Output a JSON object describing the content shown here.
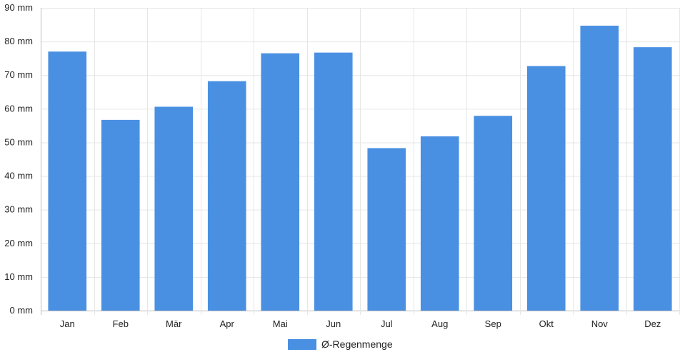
{
  "chart_data": {
    "type": "bar",
    "categories": [
      "Jan",
      "Feb",
      "Mär",
      "Apr",
      "Mai",
      "Jun",
      "Jul",
      "Aug",
      "Sep",
      "Okt",
      "Nov",
      "Dez"
    ],
    "series": [
      {
        "name": "Ø-Regenmenge",
        "color": "#4a90e2",
        "values": [
          77,
          56.7,
          60.6,
          68.2,
          76.5,
          76.7,
          48.3,
          51.8,
          57.9,
          72.7,
          84.7,
          78.3
        ]
      }
    ],
    "ylim": [
      0,
      90
    ],
    "ytick_step": 10,
    "ytick_labels": [
      "0 mm",
      "10 mm",
      "20 mm",
      "30 mm",
      "40 mm",
      "50 mm",
      "60 mm",
      "70 mm",
      "80 mm",
      "90 mm"
    ],
    "grid": true,
    "legend_position": "bottom-center",
    "grid_color": "#e6e6e6",
    "axis_color": "#bdbdbd"
  }
}
